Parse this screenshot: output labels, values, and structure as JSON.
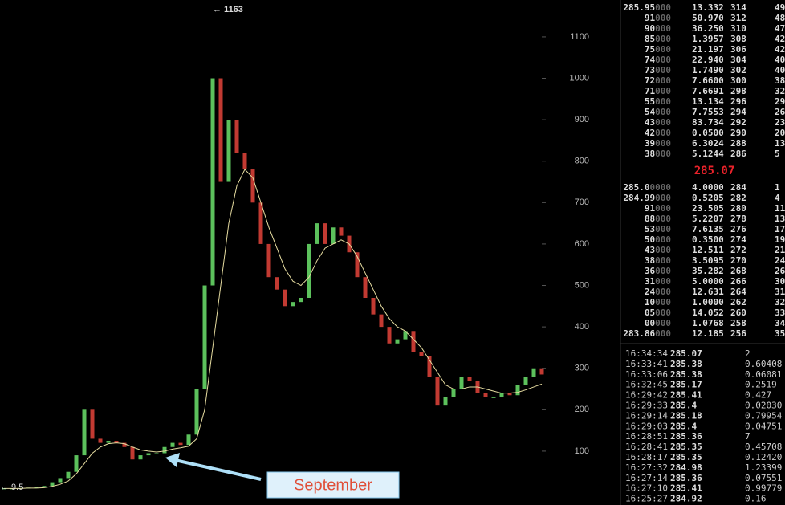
{
  "chart_data": {
    "type": "candlestick",
    "values": [
      10,
      10,
      11,
      12,
      13,
      16,
      25,
      35,
      50,
      90,
      200,
      130,
      120,
      125,
      120,
      110,
      80,
      90,
      95,
      95,
      110,
      120,
      115,
      140,
      250,
      500,
      1000,
      750,
      900,
      820,
      780,
      700,
      600,
      520,
      490,
      450,
      460,
      470,
      600,
      650,
      600,
      640,
      620,
      580,
      520,
      470,
      430,
      400,
      360,
      370,
      390,
      340,
      330,
      280,
      210,
      230,
      250,
      280,
      270,
      240,
      230,
      230,
      240,
      235,
      260,
      280,
      300,
      285
    ],
    "up_color": "#5cc15c",
    "down_color": "#c23a32",
    "moving_average": {
      "color": "#e6dca0",
      "values": [
        10,
        10,
        10,
        11,
        11,
        12,
        15,
        20,
        28,
        45,
        70,
        95,
        110,
        118,
        120,
        118,
        110,
        103,
        100,
        98,
        100,
        105,
        108,
        112,
        130,
        200,
        350,
        500,
        650,
        740,
        780,
        760,
        700,
        640,
        590,
        540,
        510,
        500,
        520,
        560,
        590,
        600,
        610,
        600,
        570,
        530,
        490,
        450,
        420,
        400,
        390,
        370,
        350,
        320,
        290,
        260,
        250,
        250,
        255,
        255,
        250,
        245,
        240,
        240,
        242,
        248,
        255,
        262
      ]
    },
    "ylim": [
      -30,
      1189
    ],
    "yticks": [
      100,
      200,
      300,
      400,
      500,
      600,
      700,
      800,
      900,
      1000,
      1100
    ],
    "annotations": {
      "high": "← 1163",
      "low": "← 9.5",
      "callout": "September"
    }
  },
  "order_book": {
    "asks": [
      [
        "285.95",
        "000",
        "13.332",
        "314",
        "49"
      ],
      [
        "91",
        "000",
        "50.970",
        "312",
        "48"
      ],
      [
        "90",
        "000",
        "36.250",
        "310",
        "47"
      ],
      [
        "85",
        "000",
        "1.3957",
        "308",
        "42"
      ],
      [
        "75",
        "000",
        "21.197",
        "306",
        "42"
      ],
      [
        "74",
        "000",
        "22.940",
        "304",
        "40"
      ],
      [
        "73",
        "000",
        "1.7490",
        "302",
        "40"
      ],
      [
        "72",
        "000",
        "7.6600",
        "300",
        "38"
      ],
      [
        "71",
        "000",
        "7.6691",
        "298",
        "32"
      ],
      [
        "55",
        "000",
        "13.134",
        "296",
        "29"
      ],
      [
        "54",
        "000",
        "7.7553",
        "294",
        "26"
      ],
      [
        "43",
        "000",
        "83.734",
        "292",
        "23"
      ],
      [
        "42",
        "000",
        "0.0500",
        "290",
        "20"
      ],
      [
        "39",
        "000",
        "6.3024",
        "288",
        "13"
      ],
      [
        "38",
        "000",
        "5.1244",
        "286",
        "5"
      ]
    ],
    "last_price": "285.07",
    "bids": [
      [
        "285.0",
        "0000",
        "4.0000",
        "284",
        "1"
      ],
      [
        "284.99",
        "000",
        "0.5205",
        "282",
        "4"
      ],
      [
        "91",
        "000",
        "23.505",
        "280",
        "11"
      ],
      [
        "88",
        "000",
        "5.2207",
        "278",
        "13"
      ],
      [
        "53",
        "000",
        "7.6135",
        "276",
        "17"
      ],
      [
        "50",
        "000",
        "0.3500",
        "274",
        "19"
      ],
      [
        "43",
        "000",
        "12.511",
        "272",
        "21"
      ],
      [
        "38",
        "000",
        "3.5095",
        "270",
        "24"
      ],
      [
        "36",
        "000",
        "35.282",
        "268",
        "26"
      ],
      [
        "31",
        "000",
        "5.0000",
        "266",
        "30"
      ],
      [
        "24",
        "000",
        "12.631",
        "264",
        "31"
      ],
      [
        "10",
        "000",
        "1.0000",
        "262",
        "32"
      ],
      [
        "05",
        "000",
        "14.052",
        "260",
        "33"
      ],
      [
        "00",
        "000",
        "1.0768",
        "258",
        "34"
      ],
      [
        "283.86",
        "000",
        "12.185",
        "256",
        "35"
      ]
    ]
  },
  "trades": {
    "rows": [
      [
        "16:34:34",
        "285.07",
        "2",
        "#e04848"
      ],
      [
        "16:33:41",
        "285.38",
        "0.60408",
        "#6fdc5a"
      ],
      [
        "16:33:06",
        "285.38",
        "0.06081",
        "#6fdc5a"
      ],
      [
        "16:32:45",
        "285.17",
        "0.2519",
        "#e04848"
      ],
      [
        "16:29:42",
        "285.41",
        "0.427",
        "#6fdc5a"
      ],
      [
        "16:29:33",
        "285.4",
        "0.02030",
        "#6fdc5a"
      ],
      [
        "16:29:14",
        "285.18",
        "0.79954",
        "#e04848"
      ],
      [
        "16:29:03",
        "285.4",
        "0.04751",
        "#6fdc5a"
      ],
      [
        "16:28:51",
        "285.36",
        "7",
        "#6fdc5a"
      ],
      [
        "16:28:41",
        "285.35",
        "0.45708",
        "#6fdc5a"
      ],
      [
        "16:28:17",
        "285.35",
        "0.12420",
        "#6fdc5a"
      ],
      [
        "16:27:32",
        "284.98",
        "1.23399",
        "#e04848"
      ],
      [
        "16:27:14",
        "285.36",
        "0.07551",
        "#e04848"
      ],
      [
        "16:27:10",
        "285.41",
        "0.99779",
        "#6fdc5a"
      ],
      [
        "16:25:27",
        "284.92",
        "0.16",
        "#6fdc5a"
      ]
    ]
  }
}
